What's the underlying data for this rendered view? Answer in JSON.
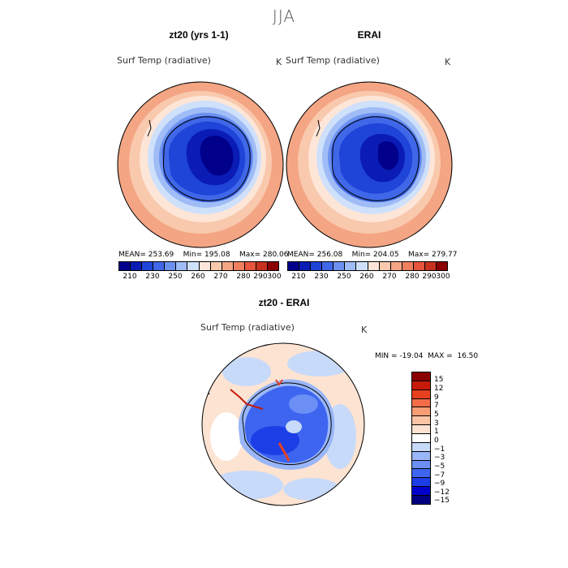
{
  "figure": {
    "season": "JJA",
    "panels": [
      {
        "title": "zt20 (yrs 1-1)",
        "variable": "Surf Temp (radiative)",
        "unit": "K",
        "stats": "MEAN= 253.69    Min= 195.08    Max= 280.06"
      },
      {
        "title": "ERAI",
        "variable": "Surf Temp (radiative)",
        "unit": "K",
        "stats": "MEAN= 256.08    Min= 204.05    Max= 279.77"
      },
      {
        "title": "zt20 - ERAI",
        "variable": "Surf Temp (radiative)",
        "unit": "K",
        "stats": "MIN = -19.04  MAX =  16.50"
      }
    ]
  },
  "colors": {
    "abs_scale": [
      "#00008b",
      "#0a1cb4",
      "#1e44d8",
      "#3f67e8",
      "#6c91f0",
      "#9fbcf6",
      "#cfe0fb",
      "#fde6d8",
      "#f9c9ad",
      "#f4a584",
      "#ef7f5e",
      "#e6553c",
      "#c8301f",
      "#8b0000"
    ],
    "diff_scale": [
      "#000080",
      "#0000cd",
      "#1c3ee6",
      "#3d65f0",
      "#6b8ff5",
      "#99b6f9",
      "#c8daf9",
      "#ffffff",
      "#fde3d2",
      "#fbc4a5",
      "#f79d75",
      "#f26c47",
      "#e7401f",
      "#c81a0a",
      "#8b0000"
    ]
  },
  "legends": {
    "abs_ticks": [
      "210",
      "230",
      "250",
      "260",
      "270",
      "280",
      "290",
      "300"
    ],
    "diff_ticks": [
      "15",
      "12",
      "9",
      "7",
      "5",
      "3",
      "1",
      "0",
      "−1",
      "−3",
      "−5",
      "−7",
      "−9",
      "−12",
      "−15"
    ]
  }
}
